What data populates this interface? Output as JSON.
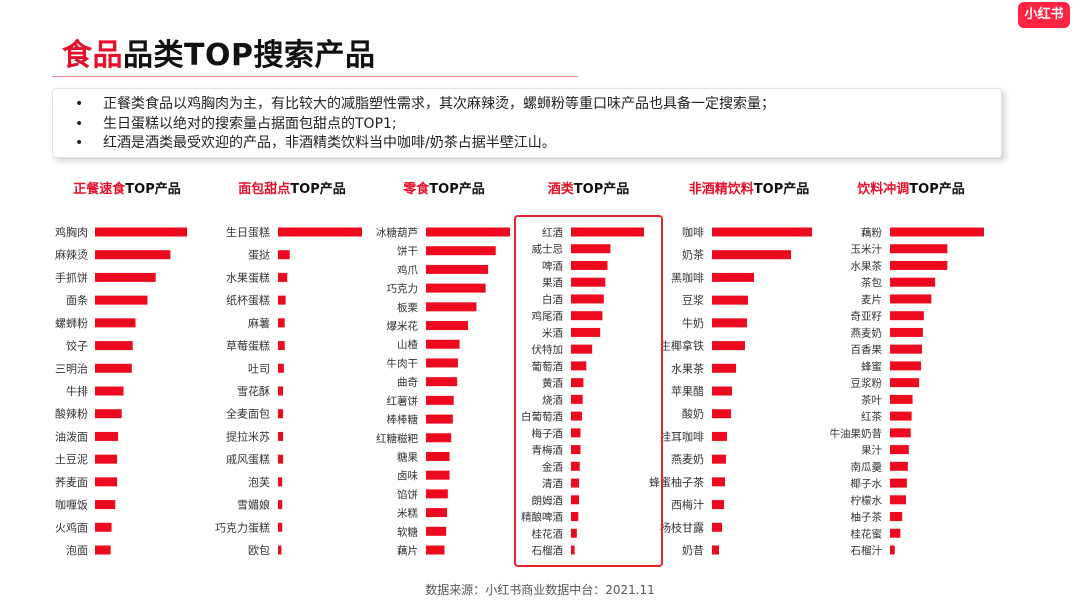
{
  "header": {
    "title_highlight": "食品",
    "title_rest": "品类TOP搜索产品",
    "logo_text": "小红书"
  },
  "summary": {
    "bullets": [
      "正餐类食品以鸡胸肉为主，有比较大的减脂塑性需求，其次麻辣烫，螺蛳粉等重口味产品也具备一定搜索量；",
      "生日蛋糕以绝对的搜索量占据面包甜点的TOP1;",
      "红酒是酒类最受欢迎的产品，非酒精类饮料当中咖啡/奶茶占据半壁江山。"
    ]
  },
  "colors": {
    "accent": "#e5102a",
    "bar": "#ee0a1e"
  },
  "chart_data": [
    {
      "type": "bar",
      "orientation": "horizontal",
      "title_highlight": "正餐速食",
      "title_suffix": "TOP产品",
      "categories": [
        "鸡胸肉",
        "麻辣烫",
        "手抓饼",
        "面条",
        "螺蛳粉",
        "饺子",
        "三明治",
        "牛排",
        "酸辣粉",
        "油泼面",
        "土豆泥",
        "荞麦面",
        "咖喱饭",
        "火鸡面",
        "泡面"
      ],
      "values": [
        100,
        82,
        66,
        57,
        44,
        41,
        40,
        31,
        29,
        25,
        24,
        24,
        22,
        18,
        17
      ]
    },
    {
      "type": "bar",
      "orientation": "horizontal",
      "title_highlight": "面包甜点",
      "title_suffix": "TOP产品",
      "categories": [
        "生日蛋糕",
        "蛋挞",
        "水果蛋糕",
        "纸杯蛋糕",
        "麻薯",
        "草莓蛋糕",
        "吐司",
        "雪花酥",
        "全麦面包",
        "提拉米苏",
        "戚风蛋糕",
        "泡芙",
        "雪媚娘",
        "巧克力蛋糕",
        "欧包"
      ],
      "values": [
        100,
        14,
        11,
        9,
        8,
        8,
        7,
        6,
        6,
        6,
        6,
        5,
        5,
        5,
        4
      ]
    },
    {
      "type": "bar",
      "orientation": "horizontal",
      "title_highlight": "零食",
      "title_suffix": "TOP产品",
      "categories": [
        "冰糖葫芦",
        "饼干",
        "鸡爪",
        "巧克力",
        "板栗",
        "爆米花",
        "山楂",
        "牛肉干",
        "曲奇",
        "红薯饼",
        "棒棒糖",
        "红糖糍粑",
        "糖果",
        "卤味",
        "馅饼",
        "米糕",
        "软糖",
        "藕片"
      ],
      "values": [
        100,
        83,
        74,
        71,
        60,
        50,
        40,
        38,
        37,
        33,
        32,
        30,
        28,
        28,
        26,
        25,
        24,
        22
      ]
    },
    {
      "type": "bar",
      "orientation": "horizontal",
      "title_highlight": "酒类",
      "title_suffix": "TOP产品",
      "categories": [
        "红酒",
        "威士忌",
        "啤酒",
        "果酒",
        "白酒",
        "鸡尾酒",
        "米酒",
        "伏特加",
        "葡萄酒",
        "黄酒",
        "烧酒",
        "白葡萄酒",
        "梅子酒",
        "青梅酒",
        "金酒",
        "清酒",
        "朗姆酒",
        "精酿啤酒",
        "桂花酒",
        "石榴酒"
      ],
      "values": [
        100,
        54,
        50,
        47,
        45,
        43,
        40,
        29,
        21,
        17,
        16,
        15,
        13,
        13,
        12,
        11,
        11,
        10,
        8,
        5
      ]
    },
    {
      "type": "bar",
      "orientation": "horizontal",
      "title_highlight": "非酒精饮料",
      "title_suffix": "TOP产品",
      "categories": [
        "咖啡",
        "奶茶",
        "黑咖啡",
        "豆浆",
        "牛奶",
        "生椰拿铁",
        "水果茶",
        "苹果醋",
        "酸奶",
        "挂耳咖啡",
        "燕麦奶",
        "蜂蜜柚子茶",
        "西梅汁",
        "杨枝甘露",
        "奶昔"
      ],
      "values": [
        100,
        79,
        42,
        36,
        35,
        33,
        24,
        20,
        19,
        15,
        14,
        13,
        12,
        10,
        7
      ]
    },
    {
      "type": "bar",
      "orientation": "horizontal",
      "title_highlight": "饮料冲调",
      "title_suffix": "TOP产品",
      "categories": [
        "藕粉",
        "玉米汁",
        "水果茶",
        "茶包",
        "麦片",
        "奇亚籽",
        "燕麦奶",
        "百香果",
        "蜂蜜",
        "豆浆粉",
        "茶叶",
        "红茶",
        "牛油果奶昔",
        "果汁",
        "南瓜羹",
        "椰子水",
        "柠檬水",
        "柚子茶",
        "桂花蜜",
        "石榴汁"
      ],
      "values": [
        100,
        61,
        61,
        48,
        44,
        36,
        35,
        34,
        33,
        31,
        24,
        23,
        22,
        20,
        19,
        18,
        17,
        13,
        11,
        5
      ]
    }
  ],
  "footer": {
    "source": "数据来源：小红书商业数据中台：2021.11"
  }
}
